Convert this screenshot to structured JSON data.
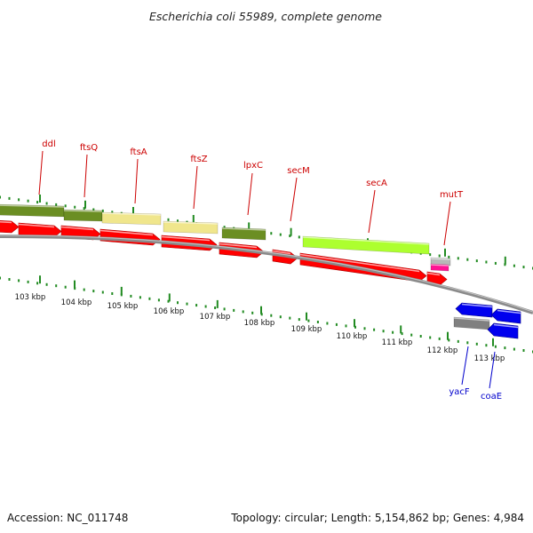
{
  "title": "Escherichia coli 55989, complete genome",
  "footer": {
    "accession": "Accession: NC_011748",
    "summary": "Topology: circular; Length: 5,154,862 bp; Genes: 4,984"
  },
  "kbp_labels": [
    "103 kbp",
    "104 kbp",
    "105 kbp",
    "106 kbp",
    "107 kbp",
    "108 kbp",
    "109 kbp",
    "110 kbp",
    "111 kbp",
    "112 kbp",
    "113 kbp"
  ],
  "colors": {
    "forward_label": "#cc0000",
    "reverse_label": "#0000cc",
    "cds_forward": "#ff0000",
    "cds_reverse": "#0000ee",
    "cog_olive": "#6b8e23",
    "cog_khaki": "#f0e68c",
    "cog_lime": "#adff2f",
    "cog_gray": "#808080",
    "cog_pink": "#ff1493",
    "backbone": "#8a8a8a",
    "ticks": "#228b22"
  },
  "genes": [
    {
      "name": "ddl",
      "strand": "+"
    },
    {
      "name": "ftsQ",
      "strand": "+"
    },
    {
      "name": "ftsA",
      "strand": "+"
    },
    {
      "name": "ftsZ",
      "strand": "+"
    },
    {
      "name": "lpxC",
      "strand": "+"
    },
    {
      "name": "secM",
      "strand": "+"
    },
    {
      "name": "secA",
      "strand": "+"
    },
    {
      "name": "mutT",
      "strand": "+"
    },
    {
      "name": "yacF",
      "strand": "-"
    },
    {
      "name": "coaE",
      "strand": "-"
    }
  ]
}
